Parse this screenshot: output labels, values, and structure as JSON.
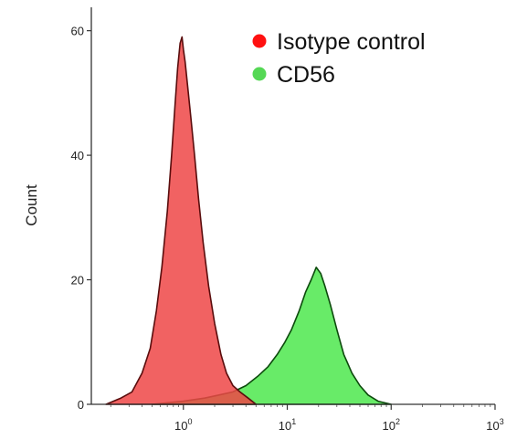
{
  "chart_data": {
    "type": "area",
    "ylabel": "Count",
    "x_scale": "log",
    "xlim": [
      0.13,
      1000
    ],
    "ylim": [
      0,
      62
    ],
    "grid": false,
    "legend_position": "top-right",
    "y_ticks": [
      {
        "value": 0,
        "label": "0"
      },
      {
        "value": 20,
        "label": "20"
      },
      {
        "value": 40,
        "label": "40"
      },
      {
        "value": 60,
        "label": "60"
      }
    ],
    "x_ticks": [
      {
        "value": 1,
        "base": "10",
        "exp": "0"
      },
      {
        "value": 10,
        "base": "10",
        "exp": "1"
      },
      {
        "value": 100,
        "base": "10",
        "exp": "2"
      },
      {
        "value": 1000,
        "base": "10",
        "exp": "3"
      }
    ],
    "series": [
      {
        "name": "Isotype control",
        "color": "#ee4747",
        "outline": "#5a0d0d",
        "dot_color": "#ff1010",
        "x": [
          0.18,
          0.25,
          0.32,
          0.4,
          0.48,
          0.55,
          0.62,
          0.7,
          0.77,
          0.83,
          0.88,
          0.93,
          0.97,
          1.0,
          1.04,
          1.1,
          1.18,
          1.28,
          1.4,
          1.55,
          1.75,
          2.0,
          2.3,
          2.6,
          3.0,
          3.5,
          4.2,
          5.0
        ],
        "y": [
          0,
          1,
          2,
          5,
          9,
          15,
          22,
          31,
          40,
          48,
          54,
          58,
          59,
          57,
          55,
          51,
          46,
          40,
          33,
          26,
          19,
          13,
          8,
          5,
          3,
          2,
          1,
          0
        ]
      },
      {
        "name": "CD56",
        "color": "#4ee84e",
        "outline": "#0c4a0c",
        "dot_color": "#55d855",
        "x": [
          0.5,
          1.0,
          1.6,
          2.2,
          3.0,
          4.0,
          5.2,
          6.5,
          8.0,
          9.5,
          11,
          13,
          15,
          17,
          19,
          21,
          23,
          26,
          30,
          35,
          42,
          50,
          60,
          75,
          100
        ],
        "y": [
          0,
          0.5,
          1,
          1.5,
          2,
          3,
          4.5,
          6,
          8,
          10,
          12,
          15,
          18,
          20,
          22,
          21,
          19,
          16,
          12,
          8,
          5,
          3,
          1.5,
          0.5,
          0
        ]
      }
    ]
  }
}
